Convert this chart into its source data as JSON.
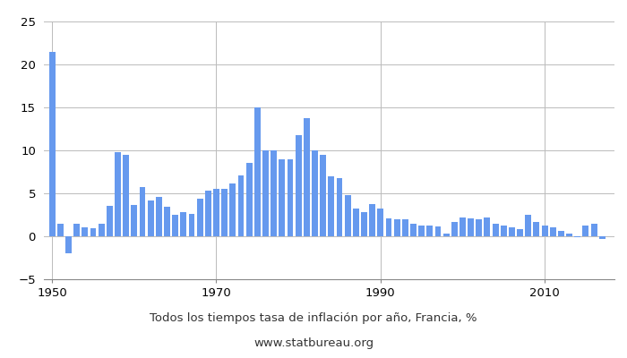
{
  "title": "Todos los tiempos tasa de inflación por año, Francia, %",
  "subtitle": "www.statbureau.org",
  "bar_color": "#6699ee",
  "years": [
    1950,
    1951,
    1952,
    1953,
    1954,
    1955,
    1956,
    1957,
    1958,
    1959,
    1960,
    1961,
    1962,
    1963,
    1964,
    1965,
    1966,
    1967,
    1968,
    1969,
    1970,
    1971,
    1972,
    1973,
    1974,
    1975,
    1976,
    1977,
    1978,
    1979,
    1980,
    1981,
    1982,
    1983,
    1984,
    1985,
    1986,
    1987,
    1988,
    1989,
    1990,
    1991,
    1992,
    1993,
    1994,
    1995,
    1996,
    1997,
    1998,
    1999,
    2000,
    2001,
    2002,
    2003,
    2004,
    2005,
    2006,
    2007,
    2008,
    2009,
    2010,
    2011,
    2012,
    2013,
    2014,
    2015,
    2016,
    2017
  ],
  "values": [
    21.5,
    1.5,
    -2.0,
    1.5,
    1.0,
    0.9,
    1.5,
    3.5,
    9.8,
    9.5,
    3.6,
    5.7,
    4.2,
    4.6,
    3.4,
    2.5,
    2.8,
    2.6,
    4.4,
    5.3,
    5.5,
    5.5,
    6.1,
    7.1,
    8.5,
    15.0,
    10.0,
    10.0,
    9.0,
    9.0,
    11.8,
    13.8,
    10.0,
    9.5,
    7.0,
    6.8,
    4.8,
    3.2,
    2.8,
    3.7,
    3.2,
    2.1,
    2.0,
    2.0,
    1.5,
    1.3,
    1.2,
    1.1,
    0.3,
    1.7,
    2.2,
    2.1,
    2.0,
    2.2,
    1.5,
    1.3,
    1.0,
    0.8,
    2.5,
    1.7,
    1.3,
    1.0,
    0.6,
    0.3,
    -0.1,
    1.3,
    1.5,
    -0.3
  ],
  "xlim": [
    1949.0,
    2018.5
  ],
  "ylim": [
    -5,
    25
  ],
  "yticks": [
    -5,
    0,
    5,
    10,
    15,
    20,
    25
  ],
  "xticks": [
    1950,
    1970,
    1990,
    2010
  ],
  "grid_color": "#bbbbbb",
  "background_color": "#ffffff",
  "title_fontsize": 9.5,
  "subtitle_fontsize": 9.5,
  "tick_fontsize": 9.5
}
